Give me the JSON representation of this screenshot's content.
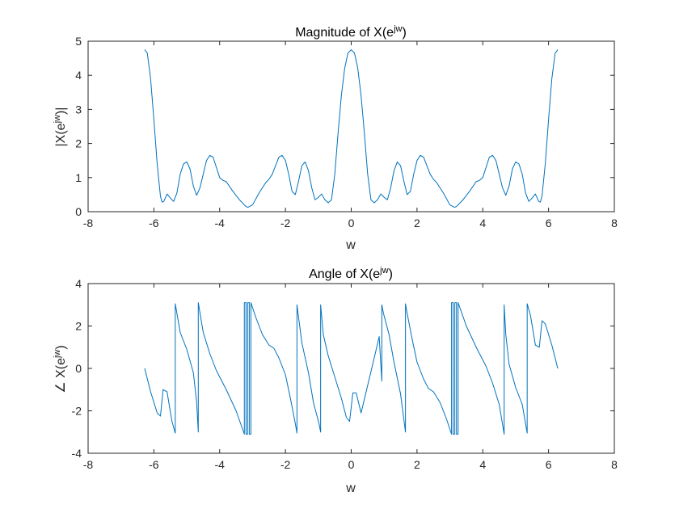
{
  "chart_data": [
    {
      "type": "line",
      "title": {
        "main": "Magnitude of X(e",
        "sup": "jw",
        "close": ")"
      },
      "xlabel": "w",
      "ylabel": {
        "main": "|X(e",
        "sup": "jw",
        "close": ")|"
      },
      "xlim": [
        -8,
        8
      ],
      "ylim": [
        0,
        5
      ],
      "xticks": [
        -8,
        -6,
        -4,
        -2,
        0,
        2,
        4,
        6,
        8
      ],
      "yticks": [
        0,
        1,
        2,
        3,
        4,
        5
      ],
      "grid": false,
      "color": "#0072BD",
      "series": [
        {
          "x": [
            -6.28,
            -6.2,
            -6.1,
            -6.0,
            -5.9,
            -5.8,
            -5.75,
            -5.7,
            -5.6,
            -5.5,
            -5.4,
            -5.3,
            -5.2,
            -5.1,
            -5.0,
            -4.9,
            -4.8,
            -4.7,
            -4.6,
            -4.5,
            -4.4,
            -4.3,
            -4.2,
            -4.1,
            -4.0,
            -3.9,
            -3.8,
            -3.6,
            -3.4,
            -3.2,
            -3.14,
            -3.0,
            -2.8,
            -2.6,
            -2.5,
            -2.4,
            -2.3,
            -2.2,
            -2.1,
            -2.0,
            -1.9,
            -1.8,
            -1.7,
            -1.6,
            -1.5,
            -1.4,
            -1.3,
            -1.2,
            -1.1,
            -1.0,
            -0.9,
            -0.8,
            -0.7,
            -0.6,
            -0.5,
            -0.4,
            -0.3,
            -0.2,
            -0.1,
            0.0,
            0.1,
            0.2,
            0.3,
            0.4,
            0.5,
            0.6,
            0.7,
            0.8,
            0.9,
            1.0,
            1.1,
            1.2,
            1.3,
            1.4,
            1.5,
            1.6,
            1.7,
            1.8,
            1.9,
            2.0,
            2.1,
            2.2,
            2.3,
            2.4,
            2.5,
            2.6,
            2.8,
            3.0,
            3.14,
            3.2,
            3.4,
            3.6,
            3.8,
            3.9,
            4.0,
            4.1,
            4.2,
            4.3,
            4.4,
            4.5,
            4.6,
            4.7,
            4.8,
            4.9,
            5.0,
            5.1,
            5.2,
            5.3,
            5.4,
            5.5,
            5.6,
            5.7,
            5.75,
            5.8,
            5.9,
            6.0,
            6.1,
            6.2,
            6.28
          ],
          "y": [
            4.75,
            4.65,
            3.9,
            2.7,
            1.4,
            0.45,
            0.28,
            0.3,
            0.52,
            0.4,
            0.3,
            0.55,
            1.1,
            1.4,
            1.46,
            1.25,
            0.75,
            0.48,
            0.7,
            1.1,
            1.5,
            1.65,
            1.6,
            1.3,
            1.0,
            0.92,
            0.88,
            0.6,
            0.35,
            0.15,
            0.13,
            0.2,
            0.55,
            0.85,
            0.95,
            1.1,
            1.35,
            1.6,
            1.65,
            1.5,
            1.1,
            0.6,
            0.5,
            0.9,
            1.35,
            1.46,
            1.2,
            0.7,
            0.35,
            0.42,
            0.52,
            0.35,
            0.26,
            0.35,
            1.1,
            2.3,
            3.4,
            4.2,
            4.65,
            4.75,
            4.65,
            4.2,
            3.4,
            2.3,
            1.1,
            0.35,
            0.26,
            0.35,
            0.52,
            0.42,
            0.35,
            0.7,
            1.2,
            1.46,
            1.35,
            0.9,
            0.5,
            0.6,
            1.1,
            1.5,
            1.65,
            1.6,
            1.35,
            1.1,
            0.95,
            0.85,
            0.55,
            0.2,
            0.13,
            0.15,
            0.35,
            0.6,
            0.88,
            0.92,
            1.0,
            1.3,
            1.6,
            1.65,
            1.5,
            1.1,
            0.7,
            0.48,
            0.75,
            1.25,
            1.46,
            1.4,
            1.1,
            0.55,
            0.3,
            0.4,
            0.52,
            0.3,
            0.28,
            0.45,
            1.4,
            2.7,
            3.9,
            4.65,
            4.75
          ]
        }
      ]
    },
    {
      "type": "line",
      "title": {
        "main": "Angle of X(e",
        "sup": "jw",
        "close": ")"
      },
      "xlabel": "w",
      "ylabel": {
        "main": "∠ X(e",
        "sup": "jw",
        "close": ")"
      },
      "xlim": [
        -8,
        8
      ],
      "ylim": [
        -4,
        4
      ],
      "xticks": [
        -8,
        -6,
        -4,
        -2,
        0,
        2,
        4,
        6,
        8
      ],
      "yticks": [
        -4,
        -2,
        0,
        2,
        4
      ],
      "grid": false,
      "color": "#0072BD",
      "series": [
        {
          "x": [
            -6.28,
            -6.1,
            -5.9,
            -5.8,
            -5.72,
            -5.6,
            -5.45,
            -5.35,
            -5.35,
            -5.2,
            -5.0,
            -4.8,
            -4.7,
            -4.65,
            -4.65,
            -4.5,
            -4.3,
            -4.1,
            -3.8,
            -3.5,
            -3.25,
            -3.25,
            -3.2,
            -3.2,
            -3.15,
            -3.15,
            -3.1,
            -3.1,
            -3.05,
            -3.05,
            -2.9,
            -2.7,
            -2.5,
            -2.35,
            -2.2,
            -2.0,
            -1.85,
            -1.7,
            -1.65,
            -1.65,
            -1.5,
            -1.3,
            -1.15,
            -0.98,
            -0.93,
            -0.93,
            -0.85,
            -0.7,
            -0.5,
            -0.3,
            -0.15,
            -0.05,
            0.05,
            0.15,
            0.3,
            0.5,
            0.7,
            0.85,
            0.93,
            0.93,
            0.98,
            1.15,
            1.3,
            1.5,
            1.65,
            1.65,
            1.7,
            1.85,
            2.0,
            2.2,
            2.35,
            2.5,
            2.7,
            2.9,
            3.05,
            3.05,
            3.1,
            3.1,
            3.15,
            3.15,
            3.2,
            3.2,
            3.25,
            3.25,
            3.5,
            3.8,
            4.1,
            4.3,
            4.5,
            4.65,
            4.65,
            4.7,
            4.8,
            5.0,
            5.2,
            5.35,
            5.35,
            5.45,
            5.6,
            5.72,
            5.8,
            5.9,
            6.1,
            6.28
          ],
          "y": [
            0.0,
            -1.1,
            -2.1,
            -2.25,
            -1.0,
            -1.1,
            -2.5,
            -3.05,
            3.05,
            1.7,
            0.9,
            -0.2,
            -1.6,
            -3.0,
            3.1,
            1.7,
            0.7,
            -0.1,
            -1.0,
            -2.0,
            -3.1,
            3.1,
            3.1,
            -3.1,
            -3.1,
            3.1,
            3.1,
            -3.1,
            -3.1,
            3.1,
            2.4,
            1.6,
            1.1,
            0.95,
            0.5,
            -0.3,
            -1.4,
            -2.6,
            -3.05,
            3.0,
            1.2,
            -0.2,
            -1.6,
            -2.6,
            -3.0,
            3.0,
            1.6,
            0.6,
            -0.4,
            -1.4,
            -2.3,
            -2.5,
            -1.15,
            -1.15,
            -2.1,
            -0.8,
            0.5,
            1.5,
            -0.6,
            3.0,
            2.6,
            1.6,
            0.3,
            -1.2,
            -3.0,
            3.05,
            2.6,
            1.4,
            0.3,
            -0.5,
            -0.95,
            -1.1,
            -1.6,
            -2.4,
            -3.1,
            3.1,
            3.1,
            -3.1,
            -3.1,
            3.1,
            3.1,
            -3.1,
            -3.1,
            3.1,
            2.0,
            1.0,
            0.1,
            -0.7,
            -1.7,
            -3.1,
            3.0,
            1.6,
            0.2,
            -0.9,
            -1.7,
            -3.05,
            3.05,
            2.5,
            1.1,
            1.0,
            2.25,
            2.1,
            1.1,
            0.0
          ]
        }
      ]
    }
  ]
}
